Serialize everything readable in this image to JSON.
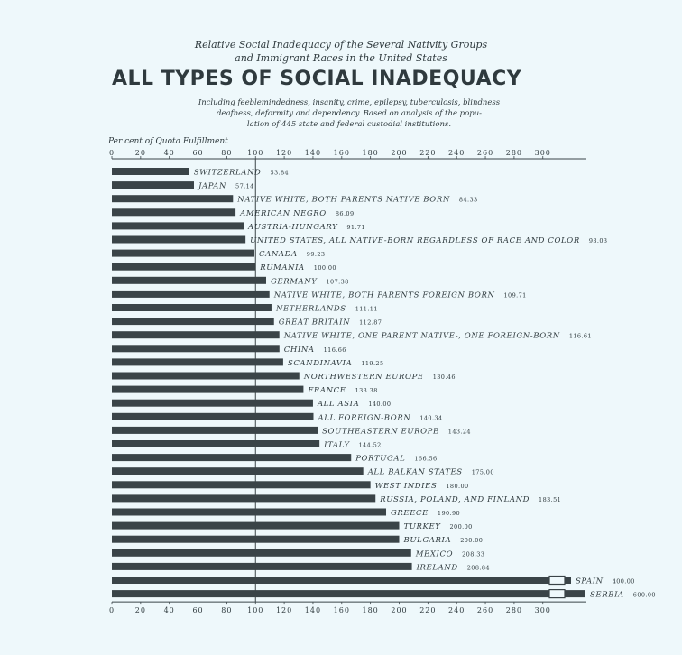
{
  "chart_data": {
    "type": "bar",
    "orientation": "horizontal",
    "title_line1": "Relative Social Inadequacy of the Several Nativity Groups",
    "title_line2": "and Immigrant Races in the United States",
    "title": "ALL TYPES OF SOCIAL INADEQUACY",
    "subtitle_lines": [
      "Including feeblemindedness, insanity, crime, epilepsy, tuberculosis, blindness",
      "deafness, deformity and dependency. Based on analysis of the popu-",
      "lation of 445 state and federal custodial institutions."
    ],
    "xlabel": "Per cent of Quota Fulfillment",
    "xlim": [
      0,
      330
    ],
    "xticks": [
      "0",
      "20",
      "40",
      "60",
      "80",
      "100",
      "120",
      "140",
      "160",
      "180",
      "200",
      "220",
      "240",
      "260",
      "280",
      "300"
    ],
    "reference_line": 100,
    "categories": [
      "SWITZERLAND",
      "JAPAN",
      "NATIVE WHITE, BOTH PARENTS NATIVE BORN",
      "AMERICAN NEGRO",
      "AUSTRIA-HUNGARY",
      "UNITED STATES, ALL NATIVE-BORN REGARDLESS OF RACE AND COLOR",
      "CANADA",
      "RUMANIA",
      "GERMANY",
      "NATIVE WHITE, BOTH PARENTS FOREIGN BORN",
      "NETHERLANDS",
      "GREAT BRITAIN",
      "NATIVE WHITE, ONE PARENT NATIVE-, ONE FOREIGN-BORN",
      "CHINA",
      "SCANDINAVIA",
      "NORTHWESTERN EUROPE",
      "FRANCE",
      "ALL ASIA",
      "ALL FOREIGN-BORN",
      "SOUTHEASTERN EUROPE",
      "ITALY",
      "PORTUGAL",
      "ALL BALKAN STATES",
      "WEST INDIES",
      "RUSSIA, POLAND, AND FINLAND",
      "GREECE",
      "TURKEY",
      "BULGARIA",
      "MEXICO",
      "IRELAND",
      "SPAIN",
      "SERBIA"
    ],
    "values": [
      53.84,
      57.14,
      84.33,
      86.09,
      91.71,
      93.03,
      99.23,
      100.0,
      107.38,
      109.71,
      111.11,
      112.87,
      116.61,
      116.66,
      119.25,
      130.46,
      133.38,
      140.0,
      140.34,
      143.24,
      144.52,
      166.56,
      175.0,
      180.0,
      183.51,
      190.9,
      200.0,
      200.0,
      208.33,
      208.84,
      400.0,
      600.0
    ],
    "value_labels": [
      "53.84",
      "57.14",
      "84.33",
      "86.09",
      "91.71",
      "93.03",
      "99.23",
      "100.00",
      "107.38",
      "109.71",
      "111.11",
      "112.87",
      "116.61",
      "116.66",
      "119.25",
      "130.46",
      "133.38",
      "140.00",
      "140.34",
      "143.24",
      "144.52",
      "166.56",
      "175.00",
      "180.00",
      "183.51",
      "190.90",
      "200.00",
      "200.00",
      "208.33",
      "208.84",
      "400.00",
      "600.00"
    ],
    "truncated_bars": [
      "SPAIN",
      "SERBIA"
    ],
    "colors": {
      "background": "#eef8fb",
      "bar": "#3a4448",
      "text": "#2f3a3e"
    },
    "grid": false
  }
}
